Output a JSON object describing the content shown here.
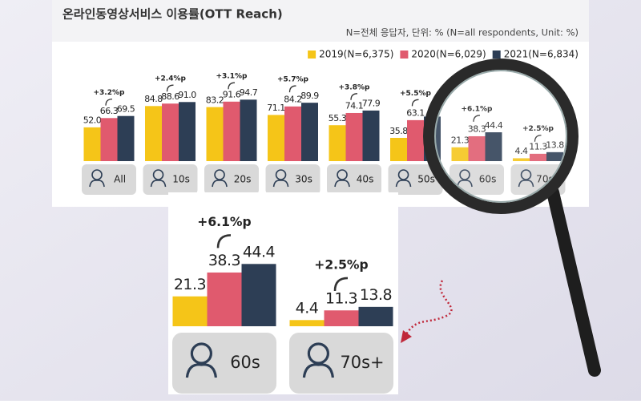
{
  "chart_data": {
    "type": "bar",
    "title": "온라인동영상서비스 이용률(OTT Reach)",
    "subtitle": "N=전체 응답자, 단위: % (N=all respondents, Unit: %)",
    "categories": [
      "All",
      "10s",
      "20s",
      "30s",
      "40s",
      "50s",
      "60s",
      "70s+"
    ],
    "series": [
      {
        "name": "2019(N=6,375)",
        "color": "#f5c518",
        "values": [
          52.0,
          84.8,
          83.2,
          71.1,
          55.3,
          35.8,
          21.3,
          4.4
        ],
        "value_labels": [
          "52.0",
          "84.8",
          "83.2",
          "71.1",
          "55.3",
          "35.8",
          "21.3",
          "4.4"
        ]
      },
      {
        "name": "2020(N=6,029)",
        "color": "#e05a6e",
        "values": [
          66.3,
          88.6,
          91.6,
          84.2,
          74.1,
          63.1,
          38.3,
          11.3
        ],
        "value_labels": [
          "66.3",
          "88.6",
          "91.6",
          "84.2",
          "74.1",
          "63.1",
          "38.3",
          "11.3"
        ]
      },
      {
        "name": "2021(N=6,834)",
        "color": "#2d3e55",
        "values": [
          69.5,
          91.0,
          94.7,
          89.9,
          77.9,
          68.6,
          44.4,
          13.8
        ],
        "value_labels": [
          "69.5",
          "91.0",
          "94.7",
          "89.9",
          "77.9",
          null,
          "44.4",
          "13.8"
        ]
      }
    ],
    "annotations": [
      "+3.2%p",
      "+2.4%p",
      "+3.1%p",
      "+5.7%p",
      "+3.8%p",
      "+5.5%p",
      "+6.1%p",
      "+2.5%p"
    ],
    "ylim": [
      0,
      100
    ],
    "legend": "top-right",
    "zoom_categories": [
      6,
      7
    ]
  }
}
